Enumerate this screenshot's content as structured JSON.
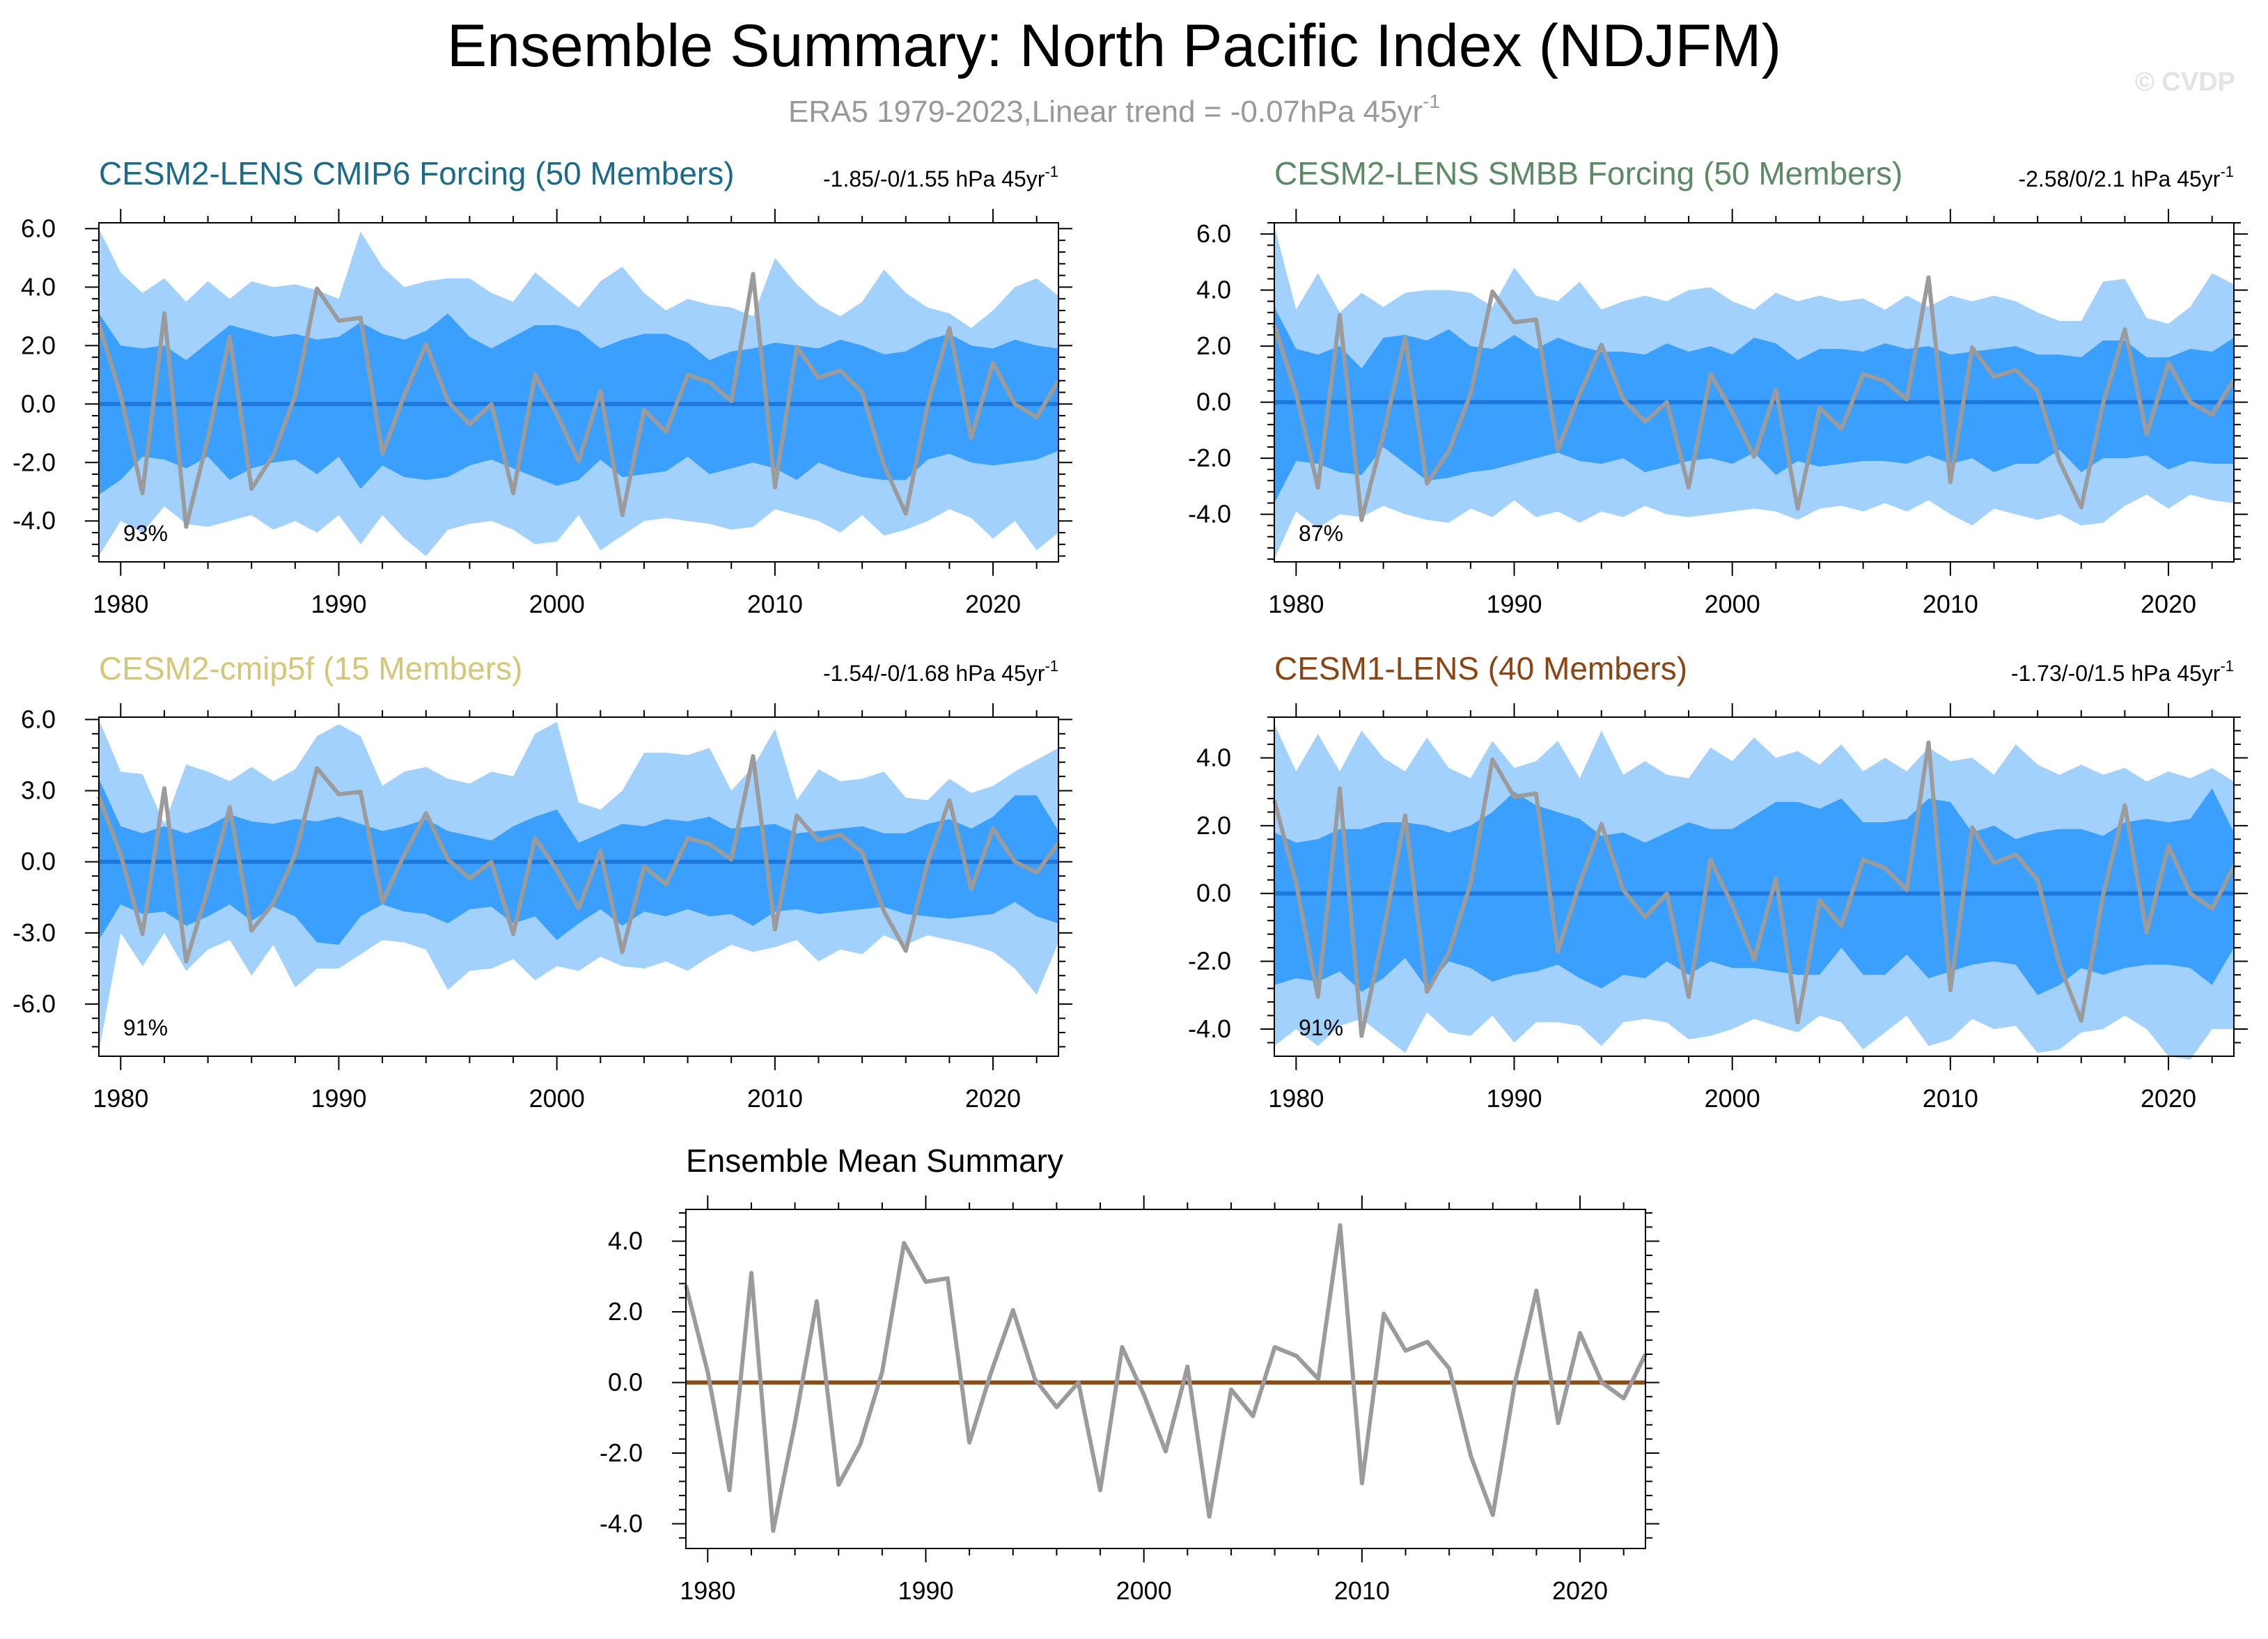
{
  "figure": {
    "title": "Ensemble Summary: North Pacific Index (NDJFM)",
    "subtitle_main": "ERA5 1979-2023,Linear trend = -0.07hPa 45yr",
    "subtitle_sup": "-1",
    "watermark": "© CVDP"
  },
  "colors": {
    "outer_band": "#a1d1fc",
    "inner_band": "#3ba0fd",
    "zero_line_blue": "#1e78dc",
    "zero_line_brown": "#8b4c17",
    "obs_line": "#9b9b9b",
    "cmip6_title": "#1b6a8a",
    "smbb_title": "#5c8a64",
    "cmip5_title": "#d3c77a",
    "cesm1_title": "#8b4513"
  },
  "chart_data": [
    {
      "id": "cmip6",
      "type": "line",
      "title": "CESM2-LENS CMIP6 Forcing (50 Members)",
      "trend_label": "-1.85/-0/1.55 hPa 45yr",
      "trend_sup": "-1",
      "pct_label": "93%",
      "title_color": "#1b6a8a",
      "xlim": [
        1979,
        2023
      ],
      "ylim": [
        -5.4,
        6.2
      ],
      "yticks": [
        -4,
        -2,
        0,
        2,
        4,
        6
      ],
      "ytick_labels": [
        "-4.0",
        "-2.0",
        "0.0",
        "2.0",
        "4.0",
        "6.0"
      ],
      "xticks": [
        1980,
        1990,
        2000,
        2010,
        2020
      ],
      "xtick_labels": [
        "1980",
        "1990",
        "2000",
        "2010",
        "2020"
      ],
      "outer_upper": [
        6.0,
        4.5,
        3.8,
        4.3,
        3.5,
        4.2,
        3.6,
        4.2,
        4.0,
        4.1,
        3.9,
        3.6,
        5.9,
        4.7,
        4.0,
        4.2,
        4.3,
        4.3,
        3.8,
        3.5,
        4.5,
        3.9,
        3.3,
        4.2,
        4.7,
        3.8,
        3.2,
        3.6,
        3.4,
        3.3,
        3.0,
        5.0,
        4.1,
        3.4,
        3.0,
        3.5,
        4.6,
        3.8,
        3.3,
        3.1,
        2.6,
        3.2,
        4.0,
        4.3,
        3.7
      ],
      "inner_upper": [
        3.1,
        2.0,
        1.9,
        2.0,
        1.5,
        2.1,
        2.7,
        2.5,
        2.3,
        2.4,
        2.2,
        2.3,
        2.8,
        2.4,
        2.2,
        2.5,
        3.1,
        2.3,
        1.9,
        2.3,
        2.7,
        2.7,
        2.5,
        1.9,
        2.2,
        2.4,
        2.4,
        2.1,
        1.5,
        1.8,
        1.9,
        2.1,
        2.0,
        1.9,
        2.2,
        2.0,
        1.7,
        1.8,
        2.2,
        2.4,
        2.0,
        1.9,
        2.2,
        2.0,
        1.9
      ],
      "inner_lower": [
        -3.1,
        -2.6,
        -1.8,
        -1.9,
        -2.2,
        -1.8,
        -2.6,
        -2.2,
        -2.0,
        -1.9,
        -2.4,
        -1.8,
        -2.9,
        -2.1,
        -2.5,
        -2.6,
        -2.5,
        -2.1,
        -1.9,
        -2.2,
        -2.5,
        -2.8,
        -2.6,
        -1.9,
        -2.5,
        -2.4,
        -2.3,
        -1.8,
        -2.4,
        -2.2,
        -2.0,
        -2.2,
        -2.6,
        -2.0,
        -2.3,
        -2.5,
        -2.6,
        -2.6,
        -1.9,
        -1.7,
        -2.0,
        -2.1,
        -2.0,
        -1.9,
        -1.6
      ],
      "outer_lower": [
        -5.2,
        -4.0,
        -4.4,
        -3.5,
        -4.1,
        -4.2,
        -4.0,
        -3.8,
        -4.3,
        -4.0,
        -4.4,
        -3.8,
        -4.8,
        -3.8,
        -4.6,
        -5.2,
        -4.3,
        -4.1,
        -4.0,
        -4.3,
        -4.8,
        -4.7,
        -3.8,
        -5.0,
        -4.5,
        -4.0,
        -3.9,
        -4.0,
        -4.1,
        -4.3,
        -4.2,
        -3.6,
        -3.8,
        -4.0,
        -4.4,
        -3.8,
        -4.5,
        -4.3,
        -4.0,
        -3.6,
        -3.9,
        -4.6,
        -4.0,
        -5.0,
        -4.4
      ],
      "mean": [
        0,
        0,
        0,
        0,
        0,
        0,
        0,
        0,
        0,
        0,
        0,
        0,
        0,
        0,
        0,
        0,
        0,
        0,
        0,
        0,
        0,
        0,
        0,
        0,
        0,
        0,
        0,
        0,
        0,
        0,
        0,
        0,
        0,
        0,
        0,
        0,
        0,
        0,
        0,
        0,
        0,
        0,
        0,
        0,
        0
      ]
    },
    {
      "id": "smbb",
      "type": "line",
      "title": "CESM2-LENS SMBB Forcing (50 Members)",
      "trend_label": "-2.58/0/2.1 hPa 45yr",
      "trend_sup": "-1",
      "pct_label": "87%",
      "title_color": "#5c8a64",
      "xlim": [
        1979,
        2023
      ],
      "ylim": [
        -5.7,
        6.4
      ],
      "yticks": [
        -4,
        -2,
        0,
        2,
        4,
        6
      ],
      "ytick_labels": [
        "-4.0",
        "-2.0",
        "0.0",
        "2.0",
        "4.0",
        "6.0"
      ],
      "xticks": [
        1980,
        1990,
        2000,
        2010,
        2020
      ],
      "xtick_labels": [
        "1980",
        "1990",
        "2000",
        "2010",
        "2020"
      ],
      "outer_upper": [
        6.3,
        3.3,
        4.6,
        3.2,
        3.9,
        3.4,
        3.9,
        4.0,
        4.0,
        3.9,
        3.4,
        4.8,
        3.8,
        3.6,
        4.3,
        3.3,
        3.6,
        3.8,
        3.6,
        4.0,
        4.1,
        3.6,
        3.3,
        3.9,
        3.6,
        3.8,
        3.6,
        3.7,
        3.3,
        3.8,
        3.4,
        3.8,
        3.6,
        3.8,
        3.6,
        3.2,
        2.9,
        2.9,
        4.3,
        4.4,
        3.0,
        2.8,
        3.4,
        4.6,
        4.2
      ],
      "inner_upper": [
        3.4,
        1.9,
        1.7,
        2.0,
        1.2,
        2.3,
        2.4,
        2.2,
        2.6,
        2.0,
        1.9,
        2.4,
        1.9,
        2.3,
        2.0,
        1.8,
        1.8,
        1.7,
        2.1,
        1.8,
        2.0,
        1.7,
        2.3,
        2.1,
        1.5,
        1.9,
        1.9,
        1.8,
        2.1,
        1.9,
        2.0,
        1.7,
        1.8,
        1.9,
        2.0,
        1.7,
        1.7,
        1.6,
        2.2,
        2.2,
        1.6,
        1.6,
        1.9,
        1.8,
        2.3
      ],
      "inner_lower": [
        -3.6,
        -2.1,
        -2.2,
        -2.5,
        -2.6,
        -1.6,
        -2.2,
        -2.8,
        -2.7,
        -2.5,
        -2.4,
        -2.2,
        -2.0,
        -1.8,
        -2.1,
        -2.2,
        -2.0,
        -2.5,
        -2.3,
        -2.1,
        -2.0,
        -2.2,
        -1.8,
        -2.6,
        -2.1,
        -2.3,
        -2.2,
        -2.1,
        -2.1,
        -2.2,
        -1.9,
        -2.2,
        -2.0,
        -2.5,
        -2.2,
        -2.2,
        -1.7,
        -2.5,
        -2.0,
        -2.0,
        -1.9,
        -2.4,
        -2.1,
        -2.2,
        -2.2
      ],
      "outer_lower": [
        -5.6,
        -3.9,
        -4.5,
        -4.0,
        -4.1,
        -3.7,
        -4.0,
        -4.2,
        -4.3,
        -3.8,
        -4.1,
        -3.5,
        -4.1,
        -3.9,
        -4.3,
        -3.9,
        -4.1,
        -3.7,
        -4.0,
        -4.1,
        -4.0,
        -3.9,
        -3.8,
        -3.9,
        -4.2,
        -3.8,
        -3.7,
        -3.9,
        -3.6,
        -3.9,
        -3.5,
        -4.0,
        -4.4,
        -3.8,
        -4.0,
        -4.2,
        -4.0,
        -4.4,
        -4.3,
        -3.7,
        -3.3,
        -3.8,
        -3.3,
        -3.5,
        -3.6
      ],
      "mean": [
        0,
        0,
        0,
        0,
        0,
        0,
        0,
        0,
        0,
        0,
        0,
        0,
        0,
        0,
        0,
        0,
        0,
        0,
        0,
        0,
        0,
        0,
        0,
        0,
        0,
        0,
        0,
        0,
        0,
        0,
        0,
        0,
        0,
        0,
        0,
        0,
        0,
        0,
        0,
        0,
        0,
        0,
        0,
        0,
        0
      ]
    },
    {
      "id": "cmip5f",
      "type": "line",
      "title": "CESM2-cmip5f (15 Members)",
      "trend_label": "-1.54/-0/1.68 hPa 45yr",
      "trend_sup": "-1",
      "pct_label": "91%",
      "title_color": "#d3c77a",
      "xlim": [
        1979,
        2023
      ],
      "ylim": [
        -8.2,
        6.1
      ],
      "yticks": [
        -6,
        -3,
        0,
        3,
        6
      ],
      "ytick_labels": [
        "-6.0",
        "-3.0",
        "0.0",
        "3.0",
        "6.0"
      ],
      "xticks": [
        1980,
        1990,
        2000,
        2010,
        2020
      ],
      "xtick_labels": [
        "1980",
        "1990",
        "2000",
        "2010",
        "2020"
      ],
      "outer_upper": [
        6.0,
        3.8,
        3.7,
        1.6,
        4.1,
        3.8,
        3.4,
        4.0,
        3.4,
        3.9,
        5.3,
        5.8,
        5.3,
        3.2,
        3.8,
        4.0,
        3.5,
        3.3,
        3.8,
        3.6,
        5.4,
        5.9,
        2.5,
        2.2,
        3.0,
        4.6,
        4.6,
        4.5,
        4.8,
        3.0,
        4.0,
        5.6,
        2.6,
        3.9,
        3.4,
        3.5,
        3.8,
        2.7,
        2.6,
        3.5,
        2.9,
        3.2,
        3.8,
        4.3,
        4.8
      ],
      "inner_upper": [
        3.5,
        1.5,
        1.2,
        1.5,
        1.2,
        1.5,
        2.0,
        1.7,
        1.6,
        1.8,
        1.7,
        1.9,
        1.6,
        1.3,
        1.5,
        1.8,
        1.3,
        1.1,
        0.9,
        1.5,
        1.9,
        2.2,
        0.8,
        1.2,
        1.6,
        1.5,
        1.8,
        1.7,
        1.9,
        1.4,
        1.5,
        1.6,
        1.2,
        1.3,
        1.4,
        1.5,
        1.2,
        1.2,
        1.6,
        1.8,
        1.4,
        1.9,
        2.8,
        2.8,
        1.3
      ],
      "inner_lower": [
        -3.3,
        -1.8,
        -2.2,
        -2.1,
        -2.7,
        -2.3,
        -1.8,
        -2.5,
        -1.9,
        -2.3,
        -3.4,
        -3.5,
        -2.3,
        -1.8,
        -2.1,
        -2.2,
        -2.6,
        -2.0,
        -1.9,
        -2.6,
        -2.3,
        -3.3,
        -2.6,
        -2.0,
        -2.7,
        -2.1,
        -2.3,
        -2.0,
        -2.3,
        -2.2,
        -2.7,
        -2.1,
        -2.0,
        -2.2,
        -2.1,
        -2.0,
        -1.9,
        -2.2,
        -2.3,
        -2.4,
        -2.3,
        -2.2,
        -1.7,
        -2.3,
        -2.6
      ],
      "outer_lower": [
        -8.0,
        -3.0,
        -4.4,
        -3.0,
        -4.6,
        -3.7,
        -3.3,
        -4.8,
        -3.5,
        -5.3,
        -4.5,
        -4.5,
        -3.9,
        -3.3,
        -3.4,
        -3.7,
        -5.4,
        -4.6,
        -4.5,
        -4.1,
        -5.0,
        -4.4,
        -4.6,
        -4.0,
        -4.4,
        -4.5,
        -4.2,
        -4.6,
        -4.0,
        -3.5,
        -3.8,
        -3.6,
        -3.3,
        -4.2,
        -3.7,
        -3.9,
        -3.1,
        -3.5,
        -3.1,
        -3.3,
        -3.5,
        -3.8,
        -4.5,
        -5.6,
        -3.4
      ],
      "mean": [
        0,
        0,
        0,
        0,
        0,
        0,
        0,
        0,
        0,
        0,
        0,
        0,
        0,
        0,
        0,
        0,
        0,
        0,
        0,
        0,
        0,
        0,
        0,
        0,
        0,
        0,
        0,
        0,
        0,
        0,
        0,
        0,
        0,
        0,
        0,
        0,
        0,
        0,
        0,
        0,
        0,
        0,
        0,
        0,
        0
      ]
    },
    {
      "id": "cesm1",
      "type": "line",
      "title": "CESM1-LENS (40 Members)",
      "trend_label": "-1.73/-0/1.5 hPa 45yr",
      "trend_sup": "-1",
      "pct_label": "91%",
      "title_color": "#8b4513",
      "xlim": [
        1979,
        2023
      ],
      "ylim": [
        -4.8,
        5.2
      ],
      "yticks": [
        -4,
        -2,
        0,
        2,
        4
      ],
      "ytick_labels": [
        "-4.0",
        "-2.0",
        "0.0",
        "2.0",
        "4.0"
      ],
      "xticks": [
        1980,
        1990,
        2000,
        2010,
        2020
      ],
      "xtick_labels": [
        "1980",
        "1990",
        "2000",
        "2010",
        "2020"
      ],
      "outer_upper": [
        5.0,
        3.6,
        4.7,
        3.6,
        4.8,
        4.0,
        3.6,
        4.6,
        3.7,
        3.4,
        4.5,
        3.7,
        3.9,
        4.5,
        3.4,
        4.8,
        3.5,
        3.9,
        3.5,
        3.4,
        4.3,
        3.9,
        4.6,
        4.0,
        4.2,
        3.8,
        4.4,
        3.6,
        4.0,
        3.6,
        4.3,
        3.9,
        4.0,
        3.5,
        4.4,
        3.8,
        3.5,
        3.8,
        3.5,
        3.7,
        3.3,
        3.6,
        3.4,
        3.7,
        3.3
      ],
      "inner_upper": [
        1.8,
        1.5,
        1.6,
        1.9,
        1.9,
        2.1,
        2.1,
        2.0,
        1.8,
        2.0,
        2.4,
        3.0,
        2.6,
        2.4,
        2.2,
        1.7,
        1.8,
        1.5,
        1.8,
        2.1,
        1.9,
        1.9,
        2.3,
        2.7,
        2.7,
        2.5,
        2.8,
        2.1,
        2.1,
        2.2,
        2.8,
        2.7,
        1.8,
        2.0,
        1.6,
        1.8,
        1.9,
        1.9,
        1.7,
        2.1,
        2.2,
        2.1,
        2.2,
        3.1,
        1.8
      ],
      "inner_lower": [
        -2.7,
        -2.5,
        -2.6,
        -2.3,
        -2.9,
        -2.5,
        -1.9,
        -2.8,
        -2.0,
        -2.2,
        -2.6,
        -2.4,
        -2.3,
        -2.1,
        -2.5,
        -2.8,
        -2.4,
        -2.5,
        -2.0,
        -2.4,
        -2.0,
        -2.2,
        -2.2,
        -2.3,
        -2.4,
        -2.4,
        -1.6,
        -2.4,
        -2.4,
        -1.8,
        -2.5,
        -2.3,
        -2.1,
        -2.0,
        -2.1,
        -3.0,
        -2.7,
        -2.2,
        -2.4,
        -2.2,
        -2.1,
        -2.1,
        -2.2,
        -2.7,
        -1.6
      ],
      "outer_lower": [
        -4.5,
        -4.0,
        -4.5,
        -3.9,
        -3.7,
        -4.2,
        -4.7,
        -3.5,
        -4.1,
        -4.2,
        -3.6,
        -4.4,
        -3.8,
        -3.8,
        -3.9,
        -4.5,
        -3.8,
        -3.7,
        -3.8,
        -4.3,
        -4.2,
        -4.0,
        -3.7,
        -3.9,
        -4.1,
        -3.6,
        -3.8,
        -4.6,
        -4.1,
        -3.6,
        -4.5,
        -4.3,
        -3.7,
        -4.0,
        -3.9,
        -4.7,
        -4.6,
        -4.1,
        -4.0,
        -3.6,
        -4.0,
        -4.8,
        -4.9,
        -4.0,
        -4.0
      ],
      "mean": [
        0,
        0,
        0,
        0,
        0,
        0,
        0,
        0,
        0,
        0,
        0,
        0,
        0,
        0,
        0,
        0,
        0,
        0,
        0,
        0,
        0,
        0,
        0,
        0,
        0,
        0,
        0,
        0,
        0,
        0,
        0,
        0,
        0,
        0,
        0,
        0,
        0,
        0,
        0,
        0,
        0,
        0,
        0,
        0,
        0
      ]
    },
    {
      "id": "mean_summary",
      "type": "line",
      "title": "Ensemble Mean Summary",
      "xlim": [
        1979,
        2023
      ],
      "ylim": [
        -4.7,
        4.9
      ],
      "yticks": [
        -4,
        -2,
        0,
        2,
        4
      ],
      "ytick_labels": [
        "-4.0",
        "-2.0",
        "0.0",
        "2.0",
        "4.0"
      ],
      "xticks": [
        1980,
        1990,
        2000,
        2010,
        2020
      ],
      "xtick_labels": [
        "1980",
        "1990",
        "2000",
        "2010",
        "2020"
      ],
      "mean": [
        0,
        0,
        0,
        0,
        0,
        0,
        0,
        0,
        0,
        0,
        0,
        0,
        0,
        0,
        0,
        0,
        0,
        0,
        0,
        0,
        0,
        0,
        0,
        0,
        0,
        0,
        0,
        0,
        0,
        0,
        0,
        0,
        0,
        0,
        0,
        0,
        0,
        0,
        0,
        0,
        0,
        0,
        0,
        0,
        0
      ]
    }
  ],
  "observed": {
    "name": "ERA5",
    "start_year": 1979,
    "values": [
      2.75,
      0.3,
      -3.05,
      3.1,
      -4.2,
      -1.15,
      2.3,
      -2.9,
      -1.75,
      0.3,
      3.95,
      2.85,
      2.95,
      -1.7,
      0.3,
      2.05,
      0.1,
      -0.7,
      0.0,
      -3.05,
      1.0,
      -0.35,
      -1.95,
      0.45,
      -3.8,
      -0.2,
      -0.95,
      1.0,
      0.75,
      0.1,
      4.45,
      -2.85,
      1.95,
      0.9,
      1.15,
      0.4,
      -2.1,
      -3.75,
      -0.05,
      2.6,
      -1.15,
      1.4,
      0.0,
      -0.45,
      0.8
    ]
  }
}
